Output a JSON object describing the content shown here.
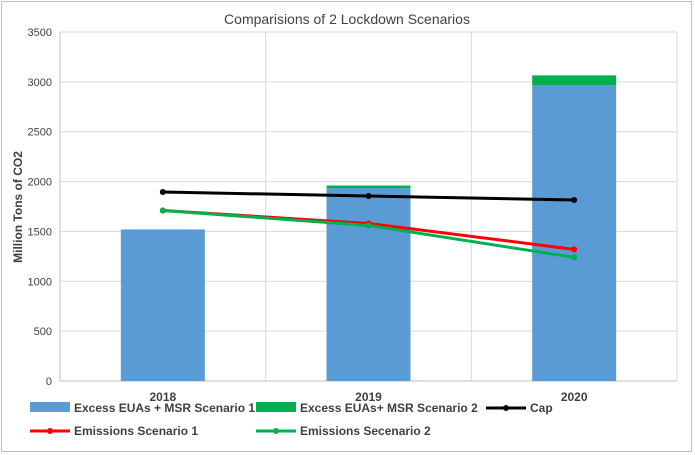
{
  "chart_data": {
    "type": "bar",
    "title": "Comparisions of 2 Lockdown Scenarios",
    "xlabel": "",
    "ylabel": "Million Tons of CO2",
    "ylim": [
      0,
      3500
    ],
    "yticks": [
      0,
      500,
      1000,
      1500,
      2000,
      2500,
      3000,
      3500
    ],
    "categories": [
      "2018",
      "2019",
      "2020"
    ],
    "grid": true,
    "legend_position": "bottom",
    "stacked_bars": [
      {
        "name": "Excess EUAs + MSR Scenario 1",
        "color": "#5b9bd5",
        "values": [
          1520,
          1935,
          2965
        ]
      },
      {
        "name": "Excess EUAs+ MSR Scenario 2",
        "color": "#00b050",
        "values": [
          0,
          25,
          100
        ]
      }
    ],
    "lines": [
      {
        "name": "Cap",
        "color": "#000000",
        "values": [
          1895,
          1855,
          1815
        ]
      },
      {
        "name": "Emissions Scenario 1",
        "color": "#ff0000",
        "values": [
          1710,
          1580,
          1320
        ]
      },
      {
        "name": "Emissions Secenario 2",
        "color": "#00b050",
        "values": [
          1710,
          1560,
          1240
        ]
      }
    ]
  }
}
